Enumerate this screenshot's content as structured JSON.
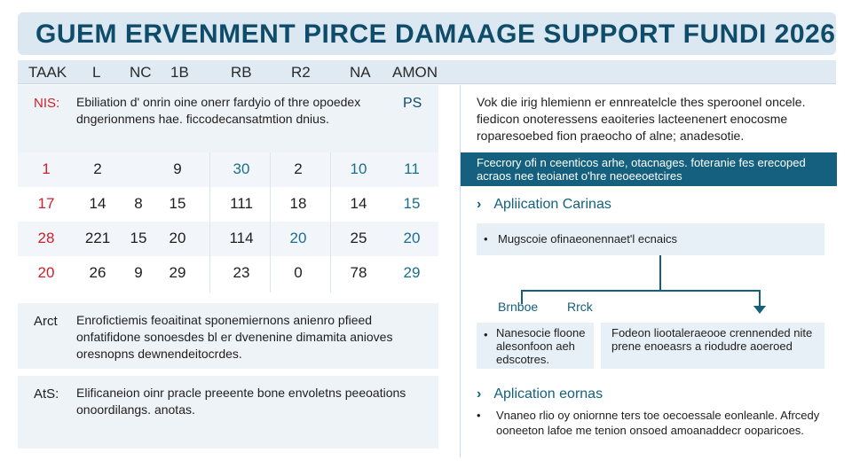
{
  "title": "GUEM ERVENMENT PIRCE DAMAAGE SUPPORT FUNDI 2026",
  "header": [
    "TAAK",
    "L",
    "NC",
    "1B",
    "RB",
    "R2",
    "NA",
    "AMON"
  ],
  "intro": {
    "tag": "NIS:",
    "text": "Ebiliation  d' onrin oine onerr fardyio of thre opoedex dngerionmens hae. ficcodecansatmtion dnius.",
    "tag_right": "PS"
  },
  "grid_rows": [
    [
      "1",
      "2",
      "",
      "9",
      "30",
      "2",
      "10",
      "11"
    ],
    [
      "17",
      "14",
      "8",
      "15",
      "111",
      "18",
      "14",
      "15"
    ],
    [
      "28",
      "221",
      "15",
      "20",
      "114",
      "20",
      "25",
      "20"
    ],
    [
      "20",
      "26",
      "9",
      "29",
      "23",
      "0",
      "78",
      "29"
    ]
  ],
  "notes": [
    {
      "tag": "Arct",
      "text": "Enrofictiemis feoaitinat sponemiernons anienro pfieed onfatifidone sonoesdes bl er dvenenine dimamita anioves oresnopns dewnendeitocrdes."
    },
    {
      "tag": "AtS:",
      "text": "Elificaneion oinr pracle preeente bone envoletns peeoations onoordilangs. anotas."
    }
  ],
  "right": {
    "intro": "Vok die irig hlemienn er ennreatelcle thes speroonel oncele. fiedicon onoteressens eaoiteries lacteenenert enocosme roparesoebed fion praeocho of alne; anadesotie.",
    "banner": "Fcecrory ofi n ceenticos arhe, otacnages. foteranie fes erecoped acraos nee teoianet o'hre neoeeoetcires",
    "criteria_title": "Apliication Carinas",
    "criteria_item": "Mugscoie  ofinaeonennaet'l ecnaics",
    "branch_left": "Brnboe",
    "branch_right": "Rrck",
    "box_left": "Nanesocie floone alesonfoon aeh edscotres.",
    "box_right": "Fodeon liootaleraeooe crennended nite prene enoeasrs a riodudre aoeroed",
    "process_title": "Aplication eornas",
    "process_item": "Vnaneo rlio oy oniornne ters toe oecoessale eonleanle. Afrcedy ooneeton lafoe me tenion onsoed amoanaddecr ooparicoes."
  }
}
